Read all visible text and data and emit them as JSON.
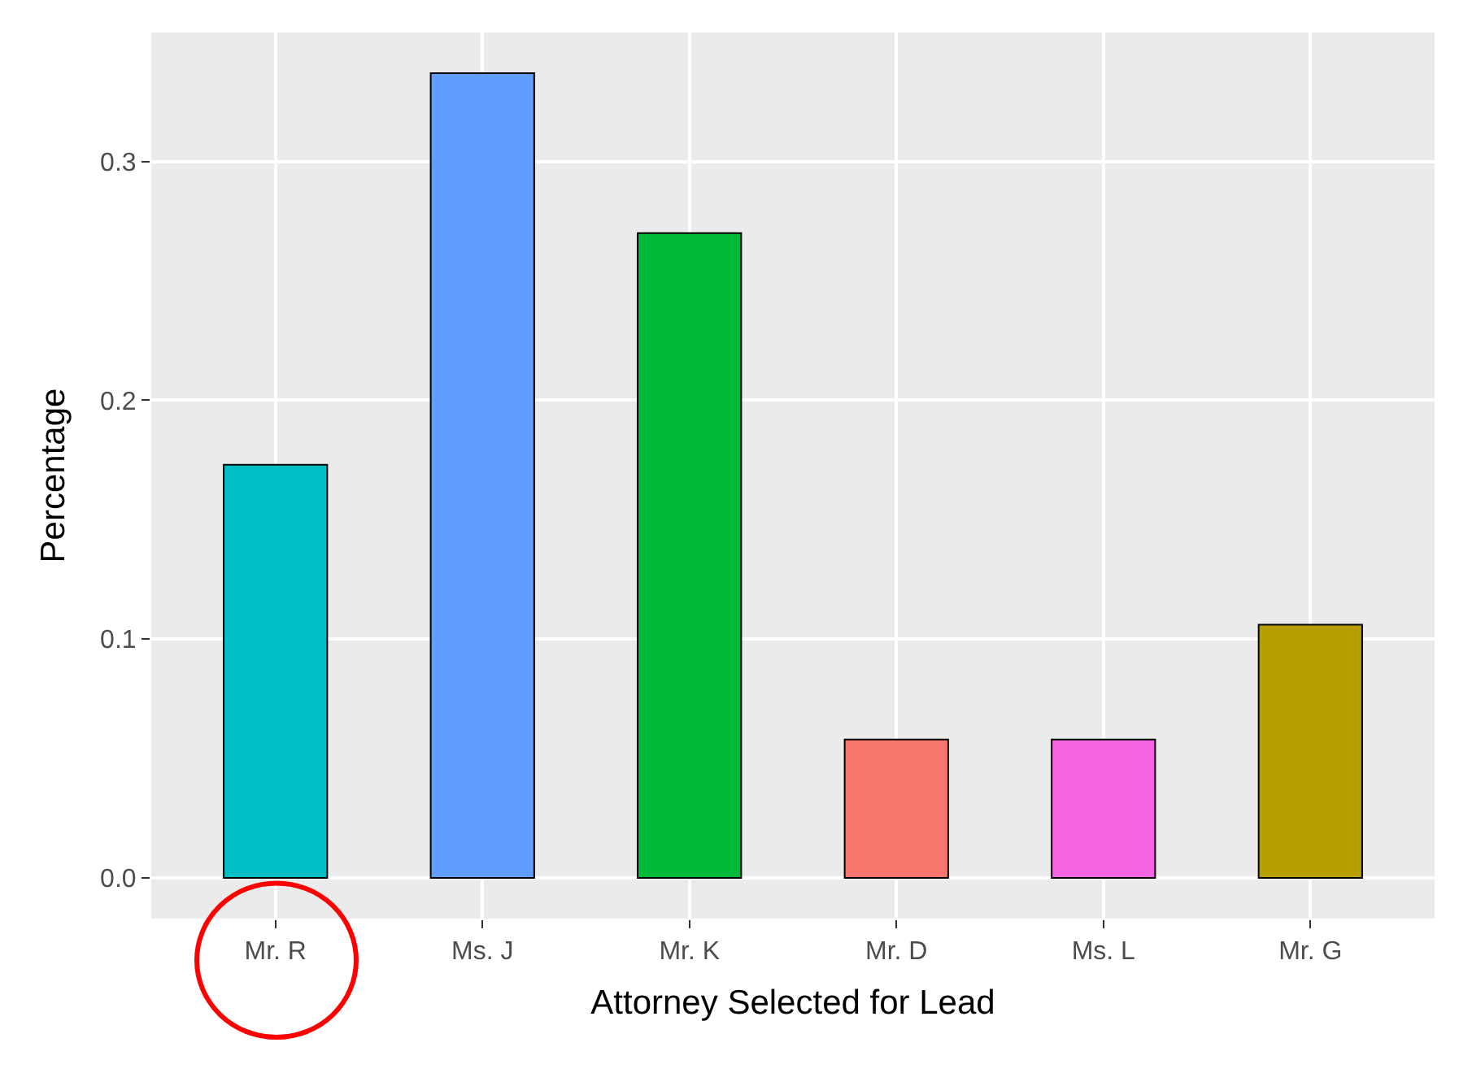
{
  "chart_data": {
    "type": "bar",
    "xlabel": "Attorney Selected for Lead",
    "ylabel": "Percentage",
    "categories": [
      "Mr. R",
      "Ms. J",
      "Mr. K",
      "Mr. D",
      "Ms. L",
      "Mr. G"
    ],
    "values": [
      0.173,
      0.337,
      0.27,
      0.058,
      0.058,
      0.106
    ],
    "colors": [
      "#00bfc4",
      "#619cff",
      "#00ba38",
      "#f8766d",
      "#f564e3",
      "#b79f00"
    ],
    "ylim": [
      -0.017,
      0.354
    ],
    "yticks": [
      {
        "value": 0,
        "label": "0.0"
      },
      0.1,
      0.2,
      0.3
    ],
    "grid": true
  }
}
